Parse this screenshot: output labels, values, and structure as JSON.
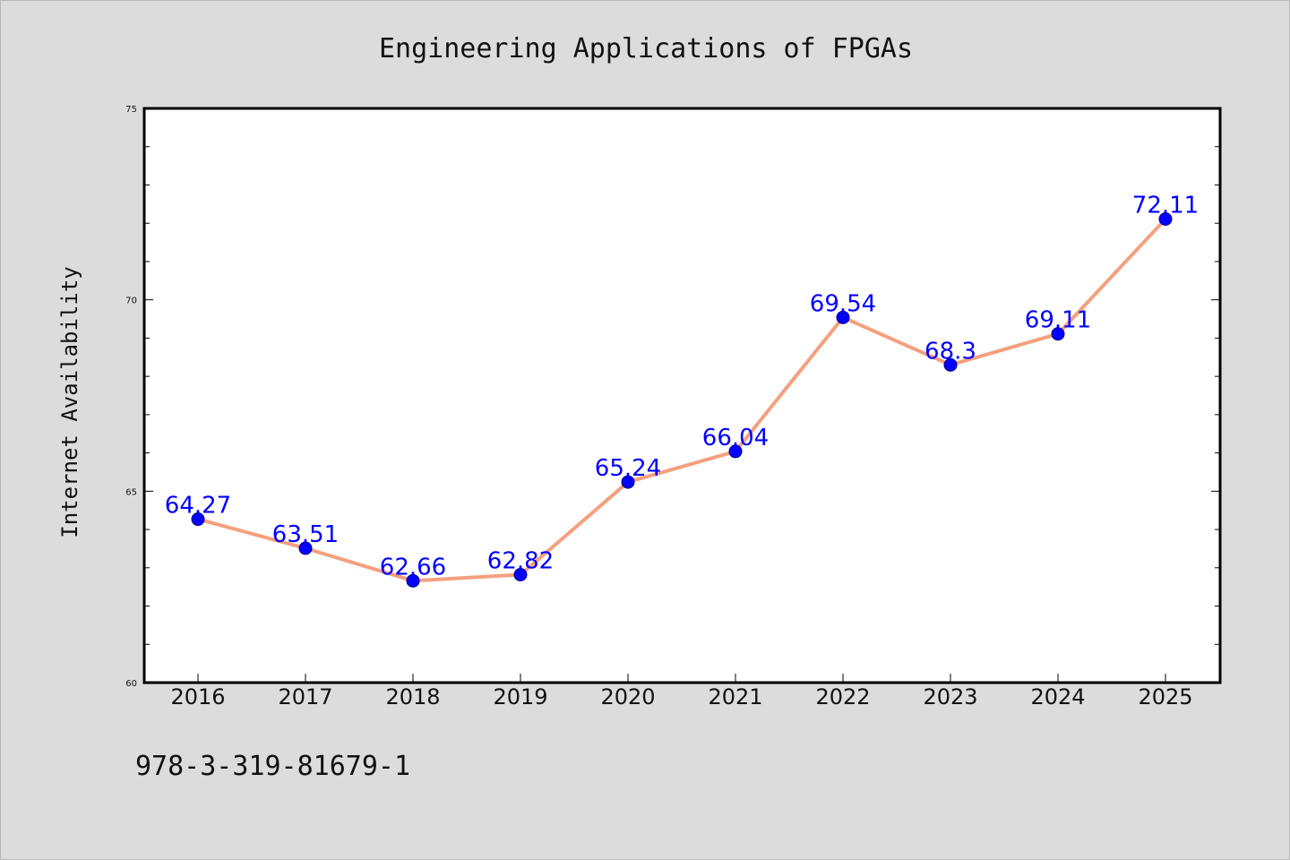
{
  "footer": {
    "isbn": "978-3-319-81679-1"
  },
  "chart_data": {
    "type": "line",
    "title": "Engineering Applications of FPGAs",
    "xlabel": "",
    "ylabel": "Internet Availability",
    "categories": [
      "2016",
      "2017",
      "2018",
      "2019",
      "2020",
      "2021",
      "2022",
      "2023",
      "2024",
      "2025"
    ],
    "series": [
      {
        "values": [
          64.27,
          63.51,
          62.66,
          62.82,
          65.24,
          66.04,
          69.54,
          68.3,
          69.11,
          72.11
        ],
        "labels": [
          "64.27",
          "63.51",
          "62.66",
          "62.82",
          "65.24",
          "66.04",
          "69.54",
          "68.3",
          "69.11",
          "72.11"
        ],
        "line_color": "#f4a07f",
        "marker_color": "#0000ff"
      }
    ],
    "ylim": [
      60,
      75
    ],
    "yticks": [
      "60",
      "65",
      "70",
      "75"
    ],
    "grid": false,
    "legend": "none",
    "colors": {
      "background": "#dcdcdc",
      "plot_background": "#ffffff",
      "line": "#f4a07f",
      "marker": "#0000ff",
      "data_label": "#0000ff"
    }
  }
}
